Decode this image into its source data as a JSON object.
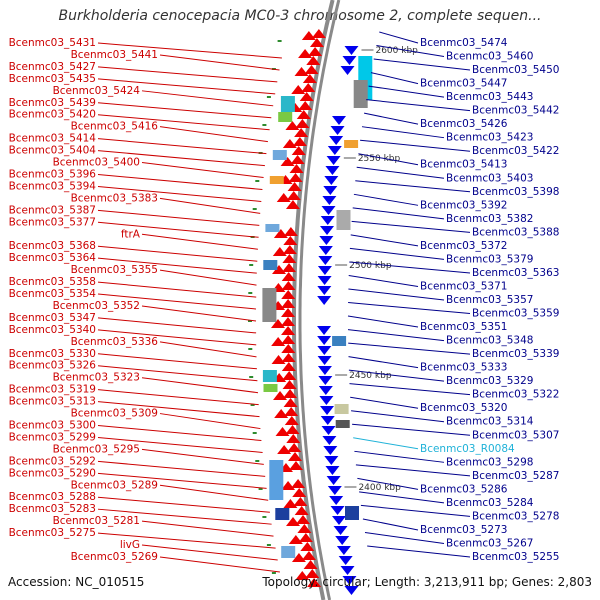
{
  "title": "Burkholderia cenocepacia MC0-3 chromosome 2, complete sequen...",
  "accession": "Accession: NC_010515",
  "summary": "Topology: circular; Length: 3,213,911 bp; Genes: 2,803",
  "colors": {
    "forward_strand": "#ee0000",
    "reverse_strand": "#0000ee",
    "backbone": "#8a8a8a",
    "left_labels": "#cc0000",
    "right_labels": "#00008b",
    "rna_label": "#20b2d8",
    "tick": "#2e8b2e"
  },
  "kbp_marks": [
    "2600 kbp",
    "2550 kbp",
    "2500 kbp",
    "2450 kbp",
    "2400 kbp"
  ],
  "left_labels": [
    "Bcenmc03_5431",
    "Bcenmc03_5441",
    "Bcenmc03_5427",
    "Bcenmc03_5435",
    "Bcenmc03_5424",
    "Bcenmc03_5439",
    "Bcenmc03_5420",
    "Bcenmc03_5416",
    "Bcenmc03_5414",
    "Bcenmc03_5404",
    "Bcenmc03_5400",
    "Bcenmc03_5396",
    "Bcenmc03_5394",
    "Bcenmc03_5383",
    "Bcenmc03_5387",
    "Bcenmc03_5377",
    "ftrA",
    "Bcenmc03_5368",
    "Bcenmc03_5364",
    "Bcenmc03_5355",
    "Bcenmc03_5358",
    "Bcenmc03_5354",
    "Bcenmc03_5352",
    "Bcenmc03_5347",
    "Bcenmc03_5340",
    "Bcenmc03_5336",
    "Bcenmc03_5330",
    "Bcenmc03_5326",
    "Bcenmc03_5323",
    "Bcenmc03_5319",
    "Bcenmc03_5313",
    "Bcenmc03_5309",
    "Bcenmc03_5300",
    "Bcenmc03_5299",
    "Bcenmc03_5295",
    "Bcenmc03_5292",
    "Bcenmc03_5290",
    "Bcenmc03_5289",
    "Bcenmc03_5288",
    "Bcenmc03_5283",
    "Bcenmc03_5281",
    "Bcenmc03_5275",
    "livG",
    "Bcenmc03_5269"
  ],
  "right_labels": [
    "Bcenmc03_5474",
    "Bcenmc03_5460",
    "Bcenmc03_5450",
    "Bcenmc03_5447",
    "Bcenmc03_5443",
    "Bcenmc03_5442",
    "Bcenmc03_5426",
    "Bcenmc03_5423",
    "Bcenmc03_5422",
    "Bcenmc03_5413",
    "Bcenmc03_5403",
    "Bcenmc03_5398",
    "Bcenmc03_5392",
    "Bcenmc03_5382",
    "Bcenmc03_5388",
    "Bcenmc03_5372",
    "Bcenmc03_5379",
    "Bcenmc03_5363",
    "Bcenmc03_5371",
    "Bcenmc03_5357",
    "Bcenmc03_5359",
    "Bcenmc03_5351",
    "Bcenmc03_5348",
    "Bcenmc03_5339",
    "Bcenmc03_5333",
    "Bcenmc03_5329",
    "Bcenmc03_5322",
    "Bcenmc03_5320",
    "Bcenmc03_5314",
    "Bcenmc03_5307",
    "Bcenmc03_R0084",
    "Bcenmc03_5298",
    "Bcenmc03_5287",
    "Bcenmc03_5286",
    "Bcenmc03_5284",
    "Bcenmc03_5278",
    "Bcenmc03_5273",
    "Bcenmc03_5267",
    "Bcenmc03_5255"
  ]
}
